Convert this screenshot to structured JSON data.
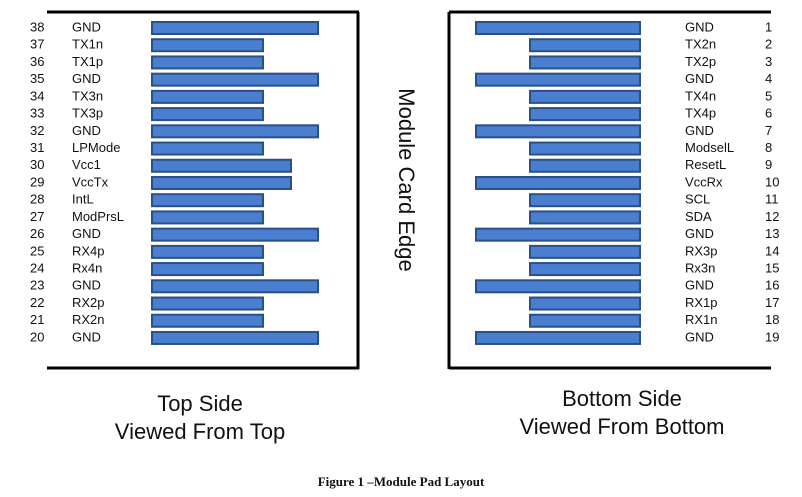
{
  "edge_label": "Module Card Edge",
  "top_side": {
    "caption": [
      "Top Side",
      "Viewed From Top"
    ],
    "pads": [
      {
        "number": 38,
        "label": "GND"
      },
      {
        "number": 37,
        "label": "TX1n"
      },
      {
        "number": 36,
        "label": "TX1p"
      },
      {
        "number": 35,
        "label": "GND"
      },
      {
        "number": 34,
        "label": "TX3n"
      },
      {
        "number": 33,
        "label": "TX3p"
      },
      {
        "number": 32,
        "label": "GND"
      },
      {
        "number": 31,
        "label": "LPMode"
      },
      {
        "number": 30,
        "label": "Vcc1"
      },
      {
        "number": 29,
        "label": "VccTx"
      },
      {
        "number": 28,
        "label": "IntL"
      },
      {
        "number": 27,
        "label": "ModPrsL"
      },
      {
        "number": 26,
        "label": "GND"
      },
      {
        "number": 25,
        "label": "RX4p"
      },
      {
        "number": 24,
        "label": "Rx4n"
      },
      {
        "number": 23,
        "label": "GND"
      },
      {
        "number": 22,
        "label": "RX2p"
      },
      {
        "number": 21,
        "label": "RX2n"
      },
      {
        "number": 20,
        "label": "GND"
      }
    ]
  },
  "bottom_side": {
    "caption": [
      "Bottom Side",
      "Viewed From Bottom"
    ],
    "pads": [
      {
        "number": 1,
        "label": "GND"
      },
      {
        "number": 2,
        "label": "TX2n"
      },
      {
        "number": 3,
        "label": "TX2p"
      },
      {
        "number": 4,
        "label": "GND"
      },
      {
        "number": 5,
        "label": "TX4n"
      },
      {
        "number": 6,
        "label": "TX4p"
      },
      {
        "number": 7,
        "label": "GND"
      },
      {
        "number": 8,
        "label": "ModselL"
      },
      {
        "number": 9,
        "label": "ResetL"
      },
      {
        "number": 10,
        "label": "VccRx"
      },
      {
        "number": 11,
        "label": "SCL"
      },
      {
        "number": 12,
        "label": "SDA"
      },
      {
        "number": 13,
        "label": "GND"
      },
      {
        "number": 14,
        "label": "RX3p"
      },
      {
        "number": 15,
        "label": "Rx3n"
      },
      {
        "number": 16,
        "label": "GND"
      },
      {
        "number": 17,
        "label": "RX1p"
      },
      {
        "number": 18,
        "label": "RX1n"
      },
      {
        "number": 19,
        "label": "GND"
      }
    ]
  },
  "figure_caption": "Figure 1 –Module Pad Layout"
}
